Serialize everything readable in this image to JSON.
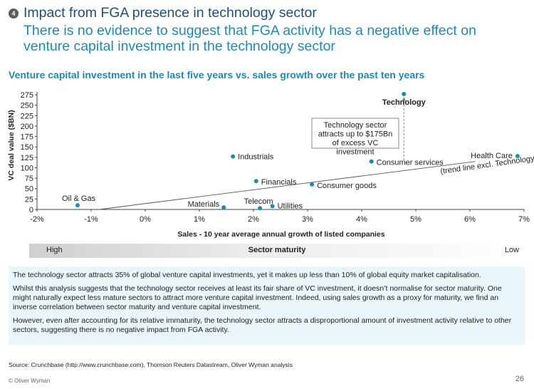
{
  "header": {
    "badge": "4",
    "title": "Impact from FGA presence in technology sector",
    "subtitle": "There is no evidence to suggest that FGA activity has a negative effect on venture capital investment in the technology sector"
  },
  "chart_data": {
    "type": "scatter",
    "title": "Venture capital investment in the last five years vs. sales growth over the past ten years",
    "xlabel": "Sales - 10 year average annual growth of listed companies",
    "ylabel": "VC deal value ($BN)",
    "xlim": [
      -2,
      7
    ],
    "ylim": [
      0,
      275
    ],
    "x_ticks": [
      -2,
      -1,
      0,
      1,
      2,
      3,
      4,
      5,
      6,
      7
    ],
    "x_tick_labels": [
      "-2%",
      "-1%",
      "0%",
      "1%",
      "2%",
      "3%",
      "4%",
      "5%",
      "6%",
      "7%"
    ],
    "y_ticks": [
      0,
      25,
      50,
      75,
      100,
      125,
      150,
      175,
      200,
      225,
      250,
      275
    ],
    "y_tick_labels": [
      "0",
      "25",
      "50",
      "75",
      "100",
      "125",
      "150",
      "175",
      "200",
      "225",
      "250",
      "275"
    ],
    "grid": false,
    "marker_color": "#1d8ab5",
    "points": [
      {
        "name": "Oil & Gas",
        "x": -1.25,
        "y": 10
      },
      {
        "name": "Materials",
        "x": 1.45,
        "y": 5
      },
      {
        "name": "Industrials",
        "x": 1.62,
        "y": 127
      },
      {
        "name": "Financials",
        "x": 2.05,
        "y": 68
      },
      {
        "name": "Telecom",
        "x": 2.12,
        "y": 3
      },
      {
        "name": "Utilities",
        "x": 2.35,
        "y": 8
      },
      {
        "name": "Consumer goods",
        "x": 3.08,
        "y": 60
      },
      {
        "name": "Consumer services",
        "x": 4.18,
        "y": 115
      },
      {
        "name": "Technology",
        "x": 4.78,
        "y": 277
      },
      {
        "name": "Health Care",
        "x": 6.88,
        "y": 128
      }
    ],
    "trend_line": {
      "label": "(trend line excl. Technology)",
      "x": [
        -0.85,
        6.1
      ],
      "y": [
        0,
        115
      ]
    },
    "annotation": {
      "text": "Technology sector attracts up to $175Bn of excess VC investment",
      "x": 4.78,
      "y_from": 277,
      "y_to": 115
    }
  },
  "maturity": {
    "high": "High",
    "title": "Sector maturity",
    "low": "Low"
  },
  "commentary": [
    "The technology sector attracts 35% of global venture capital investments, yet it makes up less than 10% of global equity market capitalisation.",
    "Whilst this analysis suggests that the technology sector receives at least its fair share of VC investment, it doesn’t normalise for sector maturity. One might naturally expect less mature sectors to attract more venture capital investment. Indeed, using sales growth as a proxy for maturity, we find an inverse correlation between sector maturity and venture capital investment.",
    "However, even after accounting for its relative immaturity, the technology sector attracts a disproportional amount of investment activity relative to other sectors, suggesting there is no negative impact from FGA activity."
  ],
  "footer": {
    "source": "Source: Crunchbase (http://www.crunchbase.com), Thomson Reuters Datastream, Oliver Wyman analysis",
    "copyright": "© Oliver Wyman",
    "page": "26"
  }
}
